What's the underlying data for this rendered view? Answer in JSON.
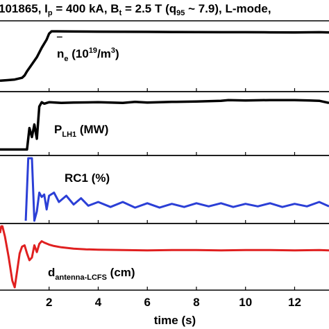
{
  "title": {
    "pre": "101865, I",
    "ip_sub": "p",
    "ip_eq": " = 400 kA, B",
    "bt_sub": "t",
    "bt_eq": " = 2.5 T (q",
    "q_sub": "95",
    "post": " ~ 7.9), L-mode,"
  },
  "chart_data": [
    {
      "type": "line",
      "panel": "ne",
      "color": "#000000",
      "label": {
        "base": "n",
        "sub": "e",
        "units_pre": " (10",
        "units_sup": "19",
        "units_post": "/m",
        "units_sup2": "3",
        "units_close": ")"
      },
      "x": [
        0.0,
        0.3,
        0.6,
        0.9,
        1.0,
        1.1,
        1.3,
        1.5,
        1.7,
        1.9,
        2.0,
        2.1,
        2.3,
        3,
        4,
        5,
        6,
        7,
        8,
        9,
        10,
        11,
        12,
        13,
        13.4
      ],
      "y": [
        0.1,
        0.15,
        0.2,
        0.35,
        0.55,
        0.9,
        1.5,
        2.1,
        2.9,
        3.6,
        4.1,
        4.3,
        4.3,
        4.28,
        4.27,
        4.26,
        4.25,
        4.24,
        4.23,
        4.22,
        4.22,
        4.21,
        4.2,
        4.22,
        4.2
      ],
      "ylim": [
        0,
        4.6
      ]
    },
    {
      "type": "line",
      "panel": "plh",
      "color": "#000000",
      "label": {
        "base": "P",
        "sub": "LH1",
        "units": " (MW)"
      },
      "x": [
        0.0,
        0.4,
        0.8,
        1.1,
        1.2,
        1.3,
        1.4,
        1.5,
        1.6,
        1.7,
        1.8,
        1.9,
        2.0,
        2.5,
        3,
        4,
        5,
        5.5,
        6,
        7,
        8,
        9,
        9.3,
        10,
        11,
        12,
        12.6,
        13,
        13.4
      ],
      "y": [
        0.0,
        0.0,
        0.0,
        0.0,
        0.6,
        0.35,
        0.7,
        0.3,
        1.2,
        1.32,
        1.28,
        1.3,
        1.32,
        1.3,
        1.31,
        1.32,
        1.3,
        1.33,
        1.31,
        1.33,
        1.34,
        1.36,
        1.38,
        1.37,
        1.38,
        1.38,
        1.37,
        1.36,
        1.3
      ],
      "ylim": [
        -0.05,
        1.5
      ]
    },
    {
      "type": "line",
      "panel": "rc1",
      "color": "#2b3fd6",
      "label": {
        "base": "RC1 (%)"
      },
      "x": [
        1.05,
        1.15,
        1.2,
        1.3,
        1.4,
        1.5,
        1.6,
        1.7,
        1.8,
        1.9,
        2.0,
        2.2,
        2.4,
        2.7,
        3.0,
        3.3,
        3.6,
        4,
        4.5,
        5,
        5.5,
        6,
        6.5,
        7,
        7.5,
        8,
        8.5,
        9,
        9.5,
        10,
        10.5,
        11,
        11.5,
        12,
        12.5,
        13,
        13.4
      ],
      "y": [
        0,
        100,
        100,
        100,
        0,
        15,
        45,
        38,
        42,
        18,
        40,
        45,
        30,
        40,
        26,
        36,
        24,
        30,
        22,
        30,
        21,
        28,
        21,
        27,
        22,
        28,
        23,
        28,
        22,
        27,
        23,
        28,
        22,
        27,
        23,
        30,
        23
      ],
      "ylim": [
        0,
        100
      ]
    },
    {
      "type": "line",
      "panel": "dant",
      "color": "#e02020",
      "label": {
        "base": "d",
        "sub": "antenna-LCFS",
        "units": " (cm)"
      },
      "x": [
        0.0,
        0.05,
        0.1,
        0.2,
        0.35,
        0.5,
        0.6,
        0.7,
        0.8,
        0.9,
        1.0,
        1.1,
        1.2,
        1.3,
        1.4,
        1.5,
        1.6,
        1.7,
        1.8,
        2.0,
        2.2,
        2.5,
        3.0,
        3.5,
        4,
        5,
        6,
        7,
        8,
        9,
        10,
        11,
        12,
        13,
        13.4
      ],
      "y": [
        8.0,
        9.0,
        9.0,
        7.5,
        4.5,
        1.0,
        0.0,
        2.5,
        5.0,
        6.0,
        6.2,
        5.0,
        4.0,
        4.4,
        6.2,
        5.2,
        6.4,
        6.8,
        6.6,
        6.3,
        6.1,
        5.9,
        5.7,
        5.6,
        5.55,
        5.5,
        5.45,
        5.5,
        5.5,
        5.45,
        5.5,
        5.5,
        5.45,
        5.5,
        5.45
      ],
      "ylim": [
        0,
        9
      ]
    }
  ],
  "xaxis": {
    "label": "time (s)",
    "xlim": [
      0,
      13.4
    ],
    "ticks": [
      "2",
      "4",
      "6",
      "8",
      "10",
      "12"
    ],
    "tick_values": [
      2,
      4,
      6,
      8,
      10,
      12
    ]
  }
}
